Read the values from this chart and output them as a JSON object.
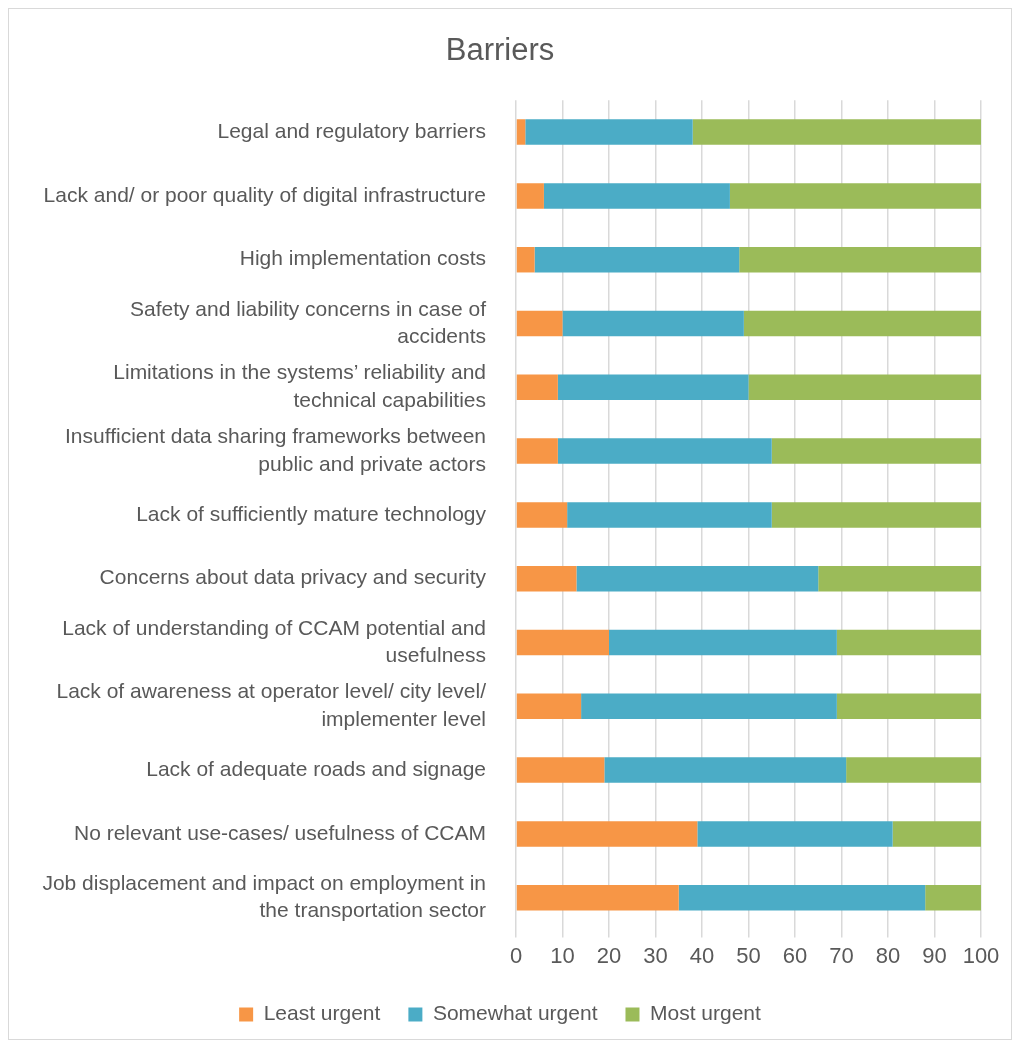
{
  "chart_data": {
    "type": "bar",
    "title": "Barriers",
    "orientation": "horizontal",
    "stacked": true,
    "categories": [
      "Legal and regulatory barriers",
      "Lack and/ or poor quality of digital infrastructure",
      "High implementation costs",
      "Safety and liability concerns in case of accidents",
      "Limitations in the systems’ reliability and technical capabilities",
      "Insufficient data sharing frameworks between public and private actors",
      "Lack of sufficiently mature technology",
      "Concerns about data privacy and security",
      "Lack of understanding of CCAM potential and usefulness",
      "Lack of awareness at operator level/ city level/ implementer level",
      "Lack of adequate roads and signage",
      "No relevant use-cases/ usefulness of CCAM",
      "Job displacement and impact on employment in the transportation sector"
    ],
    "series": [
      {
        "name": "Least urgent",
        "color": "#f79646",
        "values": [
          2,
          6,
          4,
          10,
          9,
          9,
          11,
          13,
          20,
          14,
          19,
          39,
          35
        ]
      },
      {
        "name": "Somewhat urgent",
        "color": "#4bacc6",
        "values": [
          36,
          40,
          44,
          39,
          41,
          46,
          44,
          52,
          49,
          55,
          52,
          42,
          53
        ]
      },
      {
        "name": "Most urgent",
        "color": "#9bbb59",
        "values": [
          62,
          54,
          52,
          51,
          50,
          45,
          45,
          35,
          31,
          31,
          29,
          19,
          12
        ]
      }
    ],
    "xlim": [
      0,
      100
    ],
    "xticks": [
      0,
      10,
      20,
      30,
      40,
      50,
      60,
      70,
      80,
      90,
      100
    ],
    "grid": "x",
    "legend": "bottom"
  }
}
